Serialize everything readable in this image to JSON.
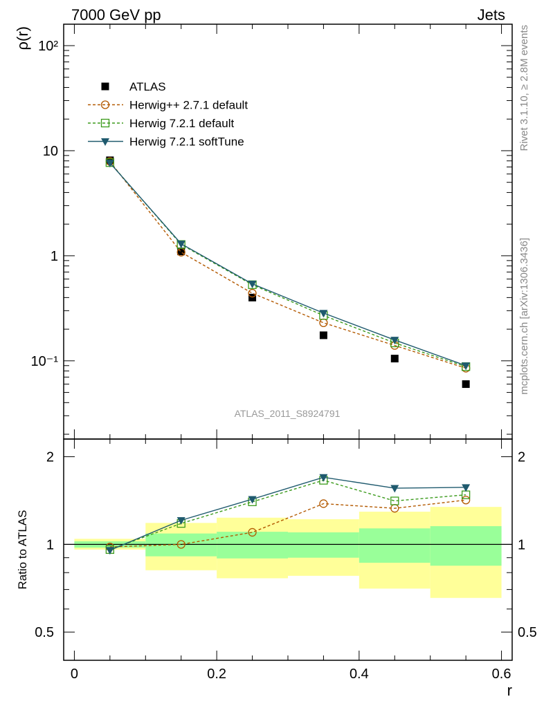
{
  "header": {
    "left": "7000 GeV pp",
    "right": "Jets"
  },
  "side_labels": {
    "rivet": "Rivet 3.1.10, ≥ 2.8M events",
    "source": "mcplots.cern.ch [arXiv:1306.3436]"
  },
  "analysis_id": "ATLAS_2011_S8924791",
  "chart_data": [
    {
      "type": "line",
      "ylabel": "ρ(r)",
      "yscale": "log",
      "ylim": [
        0.018,
        160
      ],
      "xlim": [
        -0.015,
        0.615
      ],
      "ytick_labels": [
        "10⁻¹",
        "1",
        "10",
        "10²"
      ],
      "legend_position": "upper-left",
      "x": [
        0.05,
        0.15,
        0.25,
        0.35,
        0.45,
        0.55
      ],
      "series": [
        {
          "name": "ATLAS",
          "style": "data",
          "color": "#000000",
          "marker": "square-filled",
          "values": [
            8.1,
            1.1,
            0.4,
            0.175,
            0.105,
            0.06
          ]
        },
        {
          "name": "Herwig++ 2.7.1 default",
          "style": "dashed",
          "color": "#b35900",
          "marker": "circle-open",
          "values": [
            7.9,
            1.08,
            0.44,
            0.23,
            0.14,
            0.085
          ]
        },
        {
          "name": "Herwig 7.2.1 default",
          "style": "dashed",
          "color": "#3a9a1a",
          "marker": "square-open",
          "values": [
            7.7,
            1.28,
            0.53,
            0.27,
            0.148,
            0.088
          ]
        },
        {
          "name": "Herwig 7.2.1 softTune",
          "style": "solid",
          "color": "#1f5a6e",
          "marker": "triangle-down",
          "values": [
            7.65,
            1.3,
            0.54,
            0.285,
            0.158,
            0.09
          ]
        }
      ]
    },
    {
      "type": "line",
      "ylabel": "Ratio to ATLAS",
      "xlabel": "r",
      "yscale": "log",
      "ylim": [
        0.4,
        2.3
      ],
      "ytick_labels": [
        "0.5",
        "1",
        "2"
      ],
      "xtick_labels": [
        "0",
        "0.2",
        "0.4",
        "0.6"
      ],
      "bands": [
        {
          "x0": 0.0,
          "x1": 0.1,
          "green": [
            0.975,
            1.025
          ],
          "yellow": [
            0.96,
            1.045
          ]
        },
        {
          "x0": 0.1,
          "x1": 0.2,
          "green": [
            0.91,
            1.09
          ],
          "yellow": [
            0.815,
            1.185
          ]
        },
        {
          "x0": 0.2,
          "x1": 0.3,
          "green": [
            0.895,
            1.105
          ],
          "yellow": [
            0.765,
            1.235
          ]
        },
        {
          "x0": 0.3,
          "x1": 0.4,
          "green": [
            0.9,
            1.1
          ],
          "yellow": [
            0.78,
            1.22
          ]
        },
        {
          "x0": 0.4,
          "x1": 0.5,
          "green": [
            0.865,
            1.135
          ],
          "yellow": [
            0.705,
            1.295
          ]
        },
        {
          "x0": 0.5,
          "x1": 0.6,
          "green": [
            0.845,
            1.155
          ],
          "yellow": [
            0.655,
            1.345
          ]
        }
      ],
      "x": [
        0.05,
        0.15,
        0.25,
        0.35,
        0.45,
        0.55
      ],
      "series": [
        {
          "name": "Herwig++ 2.7.1 default",
          "style": "dashed",
          "color": "#b35900",
          "marker": "circle-open",
          "values": [
            0.98,
            1.0,
            1.1,
            1.38,
            1.33,
            1.42
          ]
        },
        {
          "name": "Herwig 7.2.1 default",
          "style": "dashed",
          "color": "#3a9a1a",
          "marker": "square-open",
          "values": [
            0.96,
            1.18,
            1.4,
            1.66,
            1.41,
            1.48
          ]
        },
        {
          "name": "Herwig 7.2.1 softTune",
          "style": "solid",
          "color": "#1f5a6e",
          "marker": "triangle-down",
          "values": [
            0.955,
            1.21,
            1.43,
            1.7,
            1.56,
            1.57
          ]
        }
      ]
    }
  ]
}
